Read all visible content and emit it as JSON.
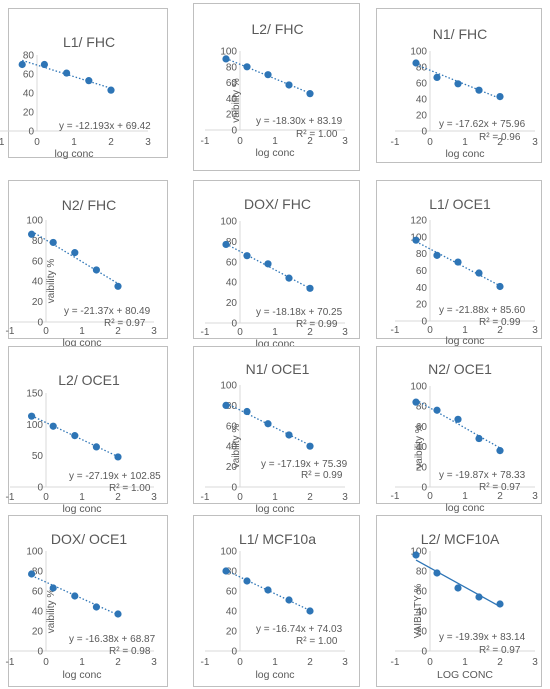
{
  "chart_data": [
    {
      "type": "scatter",
      "title": "L1/ FHC",
      "xlabel": "log conc",
      "ylabel": "",
      "xlim": [
        -1,
        3
      ],
      "xticks": [
        -1,
        0,
        1,
        2,
        3
      ],
      "ylim": [
        0,
        80
      ],
      "yticks": [
        0,
        20,
        40,
        60,
        80
      ],
      "x": [
        -0.4,
        0.2,
        0.8,
        1.4,
        2.0
      ],
      "y": [
        70,
        70,
        61,
        53,
        43
      ],
      "trendline": {
        "x": [
          -0.4,
          2.0
        ],
        "y": [
          74.3,
          45.0
        ],
        "style": "dotted"
      },
      "equation": "y = -12.193x + 69.42",
      "r2": ""
    },
    {
      "type": "scatter",
      "title": "L2/ FHC",
      "xlabel": "log conc",
      "ylabel": "vaibility %",
      "xlim": [
        -1,
        3
      ],
      "xticks": [
        -1,
        0,
        1,
        2,
        3
      ],
      "ylim": [
        0,
        100
      ],
      "yticks": [
        0,
        20,
        40,
        60,
        80,
        100
      ],
      "x": [
        -0.4,
        0.2,
        0.8,
        1.4,
        2.0
      ],
      "y": [
        90,
        80,
        70,
        57,
        46
      ],
      "trendline": {
        "x": [
          -0.4,
          2.0
        ],
        "y": [
          90.5,
          46.6
        ],
        "style": "dotted"
      },
      "equation": "y = -18.30x + 83.19",
      "r2": "R² = 1.00"
    },
    {
      "type": "scatter",
      "title": "N1/ FHC",
      "xlabel": "log conc",
      "ylabel": "",
      "xlim": [
        -1,
        3
      ],
      "xticks": [
        -1,
        0,
        1,
        2,
        3
      ],
      "ylim": [
        0,
        100
      ],
      "yticks": [
        0,
        20,
        40,
        60,
        80,
        100
      ],
      "x": [
        -0.4,
        0.2,
        0.8,
        1.4,
        2.0
      ],
      "y": [
        85,
        67,
        59,
        51,
        43
      ],
      "trendline": {
        "x": [
          -0.4,
          2.0
        ],
        "y": [
          83.0,
          40.7
        ],
        "style": "dotted"
      },
      "equation": "y = -17.62x + 75.96",
      "r2": "R² = 0.96"
    },
    {
      "type": "scatter",
      "title": "N2/ FHC",
      "xlabel": "log conc",
      "ylabel": "vaibility %",
      "xlim": [
        -1,
        3
      ],
      "xticks": [
        -1,
        0,
        1,
        2,
        3
      ],
      "ylim": [
        0,
        100
      ],
      "yticks": [
        0,
        20,
        40,
        60,
        80,
        100
      ],
      "x": [
        -0.4,
        0.2,
        0.8,
        1.4,
        2.0
      ],
      "y": [
        86,
        78,
        68,
        51,
        35
      ],
      "trendline": {
        "x": [
          -0.4,
          2.0
        ],
        "y": [
          89.0,
          37.7
        ],
        "style": "dotted"
      },
      "equation": "y = -21.37x + 80.49",
      "r2": "R² = 0.97"
    },
    {
      "type": "scatter",
      "title": "DOX/ FHC",
      "xlabel": "log conc",
      "ylabel": "",
      "xlim": [
        -1,
        3
      ],
      "xticks": [
        -1,
        0,
        1,
        2,
        3
      ],
      "ylim": [
        0,
        100
      ],
      "yticks": [
        0,
        20,
        40,
        60,
        80,
        100
      ],
      "x": [
        -0.4,
        0.2,
        0.8,
        1.4,
        2.0
      ],
      "y": [
        77,
        66,
        58,
        44,
        34
      ],
      "trendline": {
        "x": [
          -0.4,
          2.0
        ],
        "y": [
          77.5,
          33.9
        ],
        "style": "dotted"
      },
      "equation": "y = -18.18x + 70.25",
      "r2": "R² = 0.99"
    },
    {
      "type": "scatter",
      "title": "L1/ OCE1",
      "xlabel": "log conc",
      "ylabel": "",
      "xlim": [
        -1,
        3
      ],
      "xticks": [
        -1,
        0,
        1,
        2,
        3
      ],
      "ylim": [
        0,
        120
      ],
      "yticks": [
        0,
        20,
        40,
        60,
        80,
        100,
        120
      ],
      "x": [
        -0.4,
        0.2,
        0.8,
        1.4,
        2.0
      ],
      "y": [
        96,
        78,
        70,
        57,
        41
      ],
      "trendline": {
        "x": [
          -0.4,
          2.0
        ],
        "y": [
          94.4,
          41.8
        ],
        "style": "dotted"
      },
      "equation": "y = -21.88x + 85.60",
      "r2": "R² = 0.99"
    },
    {
      "type": "scatter",
      "title": "L2/ OCE1",
      "xlabel": "log conc",
      "ylabel": "",
      "xlim": [
        -1,
        3
      ],
      "xticks": [
        -1,
        0,
        1,
        2,
        3
      ],
      "ylim": [
        0,
        150
      ],
      "yticks": [
        0,
        50,
        100,
        150
      ],
      "x": [
        -0.4,
        0.2,
        0.8,
        1.4,
        2.0
      ],
      "y": [
        113,
        97,
        82,
        64,
        48
      ],
      "trendline": {
        "x": [
          -0.4,
          2.0
        ],
        "y": [
          113.7,
          48.5
        ],
        "style": "dotted"
      },
      "equation": "y = -27.19x + 102.85",
      "r2": "R² = 1.00"
    },
    {
      "type": "scatter",
      "title": "N1/ OCE1",
      "xlabel": "log conc",
      "ylabel": "vaibility %",
      "xlim": [
        -1,
        3
      ],
      "xticks": [
        -1,
        0,
        1,
        2,
        3
      ],
      "ylim": [
        0,
        100
      ],
      "yticks": [
        0,
        20,
        40,
        60,
        80,
        100
      ],
      "x": [
        -0.4,
        0.2,
        0.8,
        1.4,
        2.0
      ],
      "y": [
        80,
        74,
        62,
        51,
        40
      ],
      "trendline": {
        "x": [
          -0.4,
          2.0
        ],
        "y": [
          82.3,
          41.0
        ],
        "style": "dotted"
      },
      "equation": "y = -17.19x + 75.39",
      "r2": "R² = 0.99"
    },
    {
      "type": "scatter",
      "title": "N2/ OCE1",
      "xlabel": "log conc",
      "ylabel": "vaibility %",
      "xlim": [
        -1,
        3
      ],
      "xticks": [
        -1,
        0,
        1,
        2,
        3
      ],
      "ylim": [
        0,
        100
      ],
      "yticks": [
        0,
        20,
        40,
        60,
        80,
        100
      ],
      "x": [
        -0.4,
        0.2,
        0.8,
        1.4,
        2.0
      ],
      "y": [
        84,
        76,
        67,
        48,
        36
      ],
      "trendline": {
        "x": [
          -0.4,
          2.0
        ],
        "y": [
          86.3,
          38.6
        ],
        "style": "dotted"
      },
      "equation": "y = -19.87x + 78.33",
      "r2": "R² = 0.97"
    },
    {
      "type": "scatter",
      "title": "DOX/ OCE1",
      "xlabel": "log conc",
      "ylabel": "vaibility %",
      "xlim": [
        -1,
        3
      ],
      "xticks": [
        -1,
        0,
        1,
        2,
        3
      ],
      "ylim": [
        0,
        100
      ],
      "yticks": [
        0,
        20,
        40,
        60,
        80,
        100
      ],
      "x": [
        -0.4,
        0.2,
        0.8,
        1.4,
        2.0
      ],
      "y": [
        77,
        63,
        55,
        44,
        37
      ],
      "trendline": {
        "x": [
          -0.4,
          2.0
        ],
        "y": [
          75.4,
          36.1
        ],
        "style": "dotted"
      },
      "equation": "y = -16.38x + 68.87",
      "r2": "R² = 0.98"
    },
    {
      "type": "scatter",
      "title": "L1/ MCF10a",
      "xlabel": "log conc",
      "ylabel": "",
      "xlim": [
        -1,
        3
      ],
      "xticks": [
        -1,
        0,
        1,
        2,
        3
      ],
      "ylim": [
        0,
        100
      ],
      "yticks": [
        0,
        20,
        40,
        60,
        80,
        100
      ],
      "x": [
        -0.4,
        0.2,
        0.8,
        1.4,
        2.0
      ],
      "y": [
        80,
        70,
        61,
        51,
        40
      ],
      "trendline": {
        "x": [
          -0.4,
          2.0
        ],
        "y": [
          80.7,
          40.5
        ],
        "style": "dotted"
      },
      "equation": "y = -16.74x + 74.03",
      "r2": "R² = 1.00"
    },
    {
      "type": "scatter",
      "title": "L2/ MCF10A",
      "xlabel": "LOG CONC",
      "ylabel": "VAIBLITY %",
      "xlim": [
        -1,
        3
      ],
      "xticks": [
        -1,
        0,
        1,
        2,
        3
      ],
      "ylim": [
        0,
        100
      ],
      "yticks": [
        0,
        20,
        40,
        60,
        80,
        100
      ],
      "x": [
        -0.4,
        0.2,
        0.8,
        1.4,
        2.0
      ],
      "y": [
        96,
        78,
        63,
        54,
        47
      ],
      "trendline": {
        "x": [
          -0.4,
          2.0
        ],
        "y": [
          90.9,
          44.4
        ],
        "style": "solid"
      },
      "equation": "y = -19.39x + 83.14",
      "r2": "R² = 0.97"
    }
  ],
  "colors": {
    "marker": "#2e75b6",
    "axis": "#d9d9d9",
    "text": "#595959",
    "panel_border": "#bfbfbf"
  }
}
